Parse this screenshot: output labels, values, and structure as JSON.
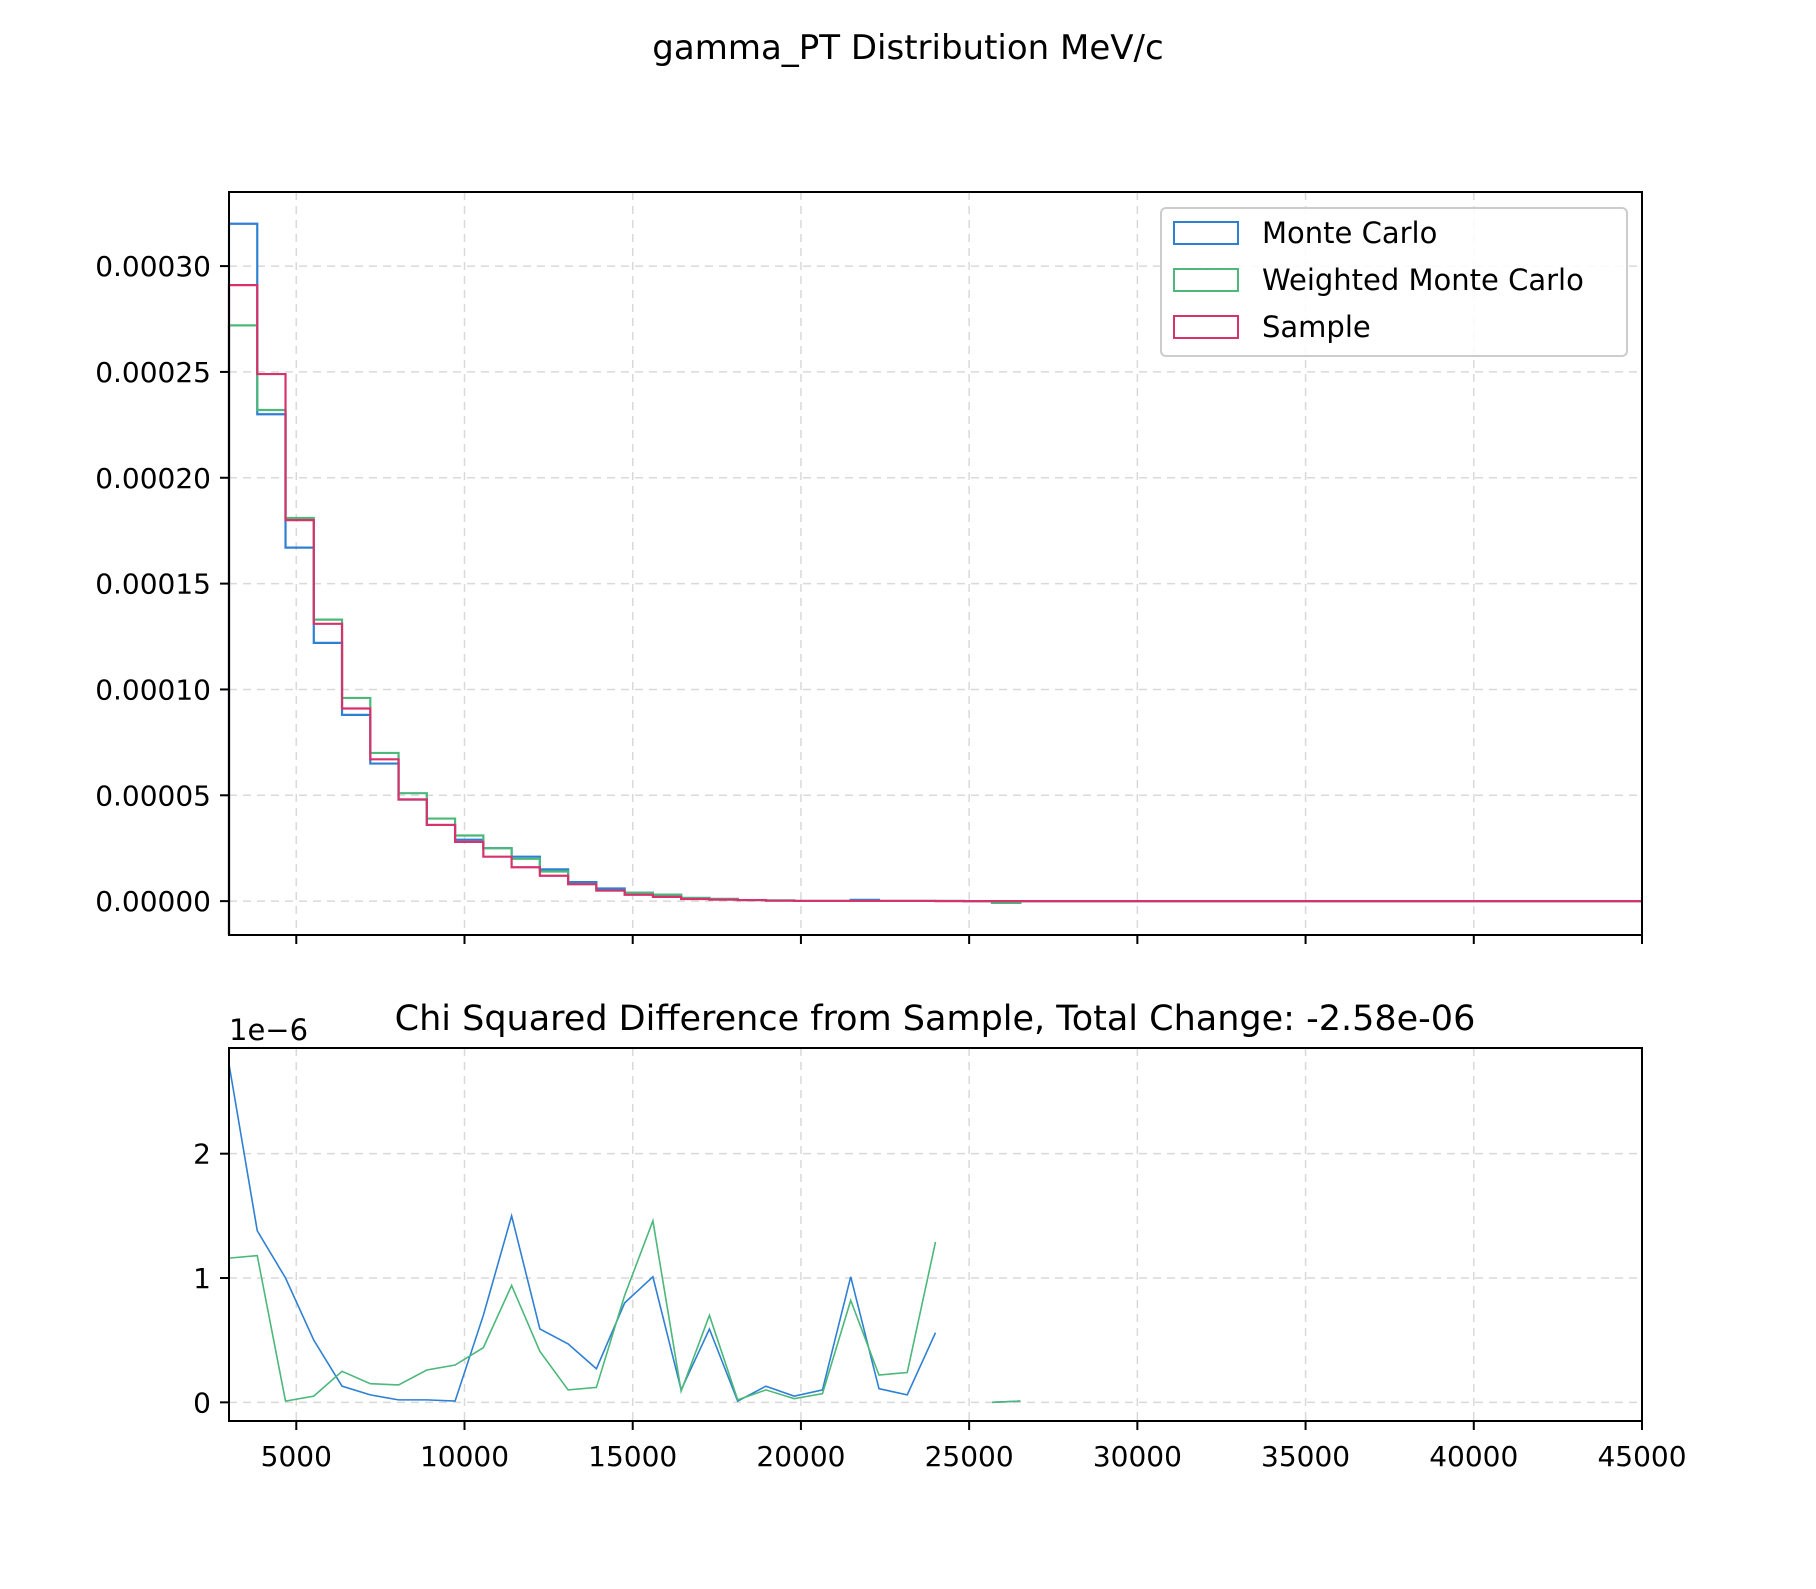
{
  "figure": {
    "title": "gamma_PT Distribution MeV/c"
  },
  "colors": {
    "monte_carlo": "#2f80d3",
    "weighted_monte_carlo": "#4cb87a",
    "sample": "#d6336c",
    "grid": "#d9d9d9"
  },
  "chart_data": [
    {
      "type": "histogram-step",
      "title": "",
      "xlabel": "",
      "ylabel": "",
      "xlim": [
        3000,
        45000
      ],
      "ylim": [
        -1.6e-05,
        0.000335
      ],
      "yticks": [
        0,
        5e-05,
        0.0001,
        0.00015,
        0.0002,
        0.00025,
        0.0003
      ],
      "ytick_labels": [
        "0.00000",
        "0.00005",
        "0.00010",
        "0.00015",
        "0.00020",
        "0.00025",
        "0.00030"
      ],
      "xticks": [
        5000,
        10000,
        15000,
        20000,
        25000,
        30000,
        35000,
        40000,
        45000
      ],
      "grid": true,
      "legend_position": "top-right",
      "bin_edges": [
        3000,
        3840,
        4680,
        5520,
        6360,
        7200,
        8040,
        8880,
        9720,
        10560,
        11400,
        12240,
        13080,
        13920,
        14760,
        15600,
        16440,
        17280,
        18120,
        18960,
        19800,
        20640,
        21480,
        22320,
        23160,
        24000,
        24840,
        25680,
        26520,
        45000
      ],
      "series": [
        {
          "name": "Monte Carlo",
          "color_key": "monte_carlo",
          "values": [
            0.00032,
            0.00023,
            0.000167,
            0.000122,
            8.8e-05,
            6.5e-05,
            4.8e-05,
            3.6e-05,
            2.9e-05,
            2.5e-05,
            2.1e-05,
            1.5e-05,
            9e-06,
            6e-06,
            4e-06,
            3e-06,
            1.5e-06,
            1e-06,
            5e-07,
            3e-07,
            1e-07,
            1e-07,
            6e-07,
            1e-07,
            1e-07,
            1e-07,
            0,
            -8e-07,
            0,
            0
          ]
        },
        {
          "name": "Weighted Monte Carlo",
          "color_key": "weighted_monte_carlo",
          "values": [
            0.000272,
            0.000232,
            0.000181,
            0.000133,
            9.6e-05,
            7e-05,
            5.1e-05,
            3.9e-05,
            3.1e-05,
            2.5e-05,
            2e-05,
            1.4e-05,
            8e-06,
            5e-06,
            4e-06,
            3e-06,
            1.5e-06,
            1e-06,
            5e-07,
            3e-07,
            1e-07,
            1e-07,
            1e-07,
            1e-07,
            1e-07,
            1e-07,
            0,
            -8e-07,
            0,
            0
          ]
        },
        {
          "name": "Sample",
          "color_key": "sample",
          "values": [
            0.000291,
            0.000249,
            0.00018,
            0.000131,
            9.1e-05,
            6.7e-05,
            4.8e-05,
            3.6e-05,
            2.8e-05,
            2.1e-05,
            1.6e-05,
            1.2e-05,
            8e-06,
            5e-06,
            3e-06,
            2e-06,
            1e-06,
            7e-07,
            5e-07,
            2e-07,
            1e-07,
            1e-07,
            1e-07,
            1e-07,
            1e-07,
            0,
            0,
            0,
            0,
            0
          ]
        }
      ]
    },
    {
      "type": "line",
      "title": "Chi Squared Difference from Sample, Total Change: -2.58e-06",
      "offset_label": "1e−6",
      "xlabel": "",
      "ylabel": "",
      "xlim": [
        3000,
        45000
      ],
      "ylim": [
        -0.15,
        2.85
      ],
      "y_units": "1e-6",
      "yticks": [
        0,
        1,
        2
      ],
      "ytick_labels": [
        "0",
        "1",
        "2"
      ],
      "xticks": [
        5000,
        10000,
        15000,
        20000,
        25000,
        30000,
        35000,
        40000,
        45000
      ],
      "xtick_labels": [
        "5000",
        "10000",
        "15000",
        "20000",
        "25000",
        "30000",
        "35000",
        "40000",
        "45000"
      ],
      "grid": true,
      "series": [
        {
          "name": "Monte Carlo",
          "color_key": "monte_carlo",
          "segments": [
            {
              "x": [
                3000,
                3840,
                4680,
                5520,
                6360,
                7200,
                8040,
                8880,
                9720,
                10560,
                11400,
                12240,
                13080,
                13920,
                14760,
                15600,
                16440,
                17280,
                18120,
                18960,
                19800,
                20640,
                21480,
                22320,
                23160,
                24000
              ],
              "y": [
                2.72,
                1.38,
                1.0,
                0.5,
                0.13,
                0.06,
                0.02,
                0.02,
                0.01,
                0.7,
                1.5,
                0.59,
                0.47,
                0.27,
                0.8,
                1.01,
                0.1,
                0.59,
                0.01,
                0.13,
                0.05,
                0.1,
                1.01,
                0.11,
                0.06,
                0.56
              ]
            },
            {
              "x": [
                25680,
                26520
              ],
              "y": [
                0.0,
                0.01
              ]
            }
          ]
        },
        {
          "name": "Weighted Monte Carlo",
          "color_key": "weighted_monte_carlo",
          "segments": [
            {
              "x": [
                3000,
                3840,
                4680,
                5520,
                6360,
                7200,
                8040,
                8880,
                9720,
                10560,
                11400,
                12240,
                13080,
                13920,
                14760,
                15600,
                16440,
                17280,
                18120,
                18960,
                19800,
                20640,
                21480,
                22320,
                23160,
                24000
              ],
              "y": [
                1.16,
                1.18,
                0.01,
                0.05,
                0.25,
                0.15,
                0.14,
                0.26,
                0.3,
                0.44,
                0.94,
                0.41,
                0.1,
                0.12,
                0.86,
                1.46,
                0.09,
                0.7,
                0.02,
                0.1,
                0.03,
                0.07,
                0.82,
                0.22,
                0.24,
                1.29
              ]
            },
            {
              "x": [
                25680,
                26520
              ],
              "y": [
                0.0,
                0.01
              ]
            }
          ]
        }
      ]
    }
  ]
}
